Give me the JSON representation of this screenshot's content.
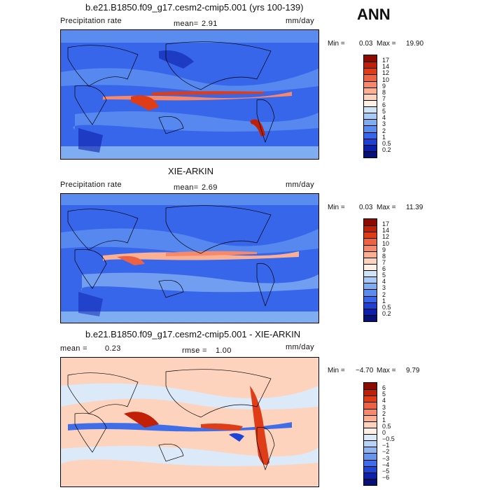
{
  "season": "ANN",
  "panels": [
    {
      "title": "b.e21.B1850.f09_g17.cesm2-cmip5.001 (yrs 100-139)",
      "left_label": "Precipitation rate",
      "mean_label": "mean=",
      "mean_value": "2.91",
      "units": "mm/day",
      "min_label": "Min =",
      "min_value": "0.03",
      "max_label": "Max =",
      "max_value": "19.90",
      "palette": "precip",
      "levels": [
        "17",
        "14",
        "12",
        "10",
        "9",
        "8",
        "7",
        "6",
        "5",
        "4",
        "3",
        "2",
        "1",
        "0.5",
        "0.2"
      ],
      "colors": [
        "#8c0a00",
        "#c21f07",
        "#de3d17",
        "#ec6242",
        "#f7886a",
        "#fbb093",
        "#fdd3bd",
        "#fff0e6",
        "#cfe3f6",
        "#a9cbf3",
        "#7fadf2",
        "#5a8cf0",
        "#3866ea",
        "#1f40d6",
        "#0c1fa8",
        "#05107a"
      ]
    },
    {
      "title": "XIE-ARKIN",
      "left_label": "Precipitation rate",
      "mean_label": "mean=",
      "mean_value": "2.69",
      "units": "mm/day",
      "min_label": "Min =",
      "min_value": "0.03",
      "max_label": "Max =",
      "max_value": "11.39",
      "palette": "precip",
      "levels": [
        "17",
        "14",
        "12",
        "10",
        "9",
        "8",
        "7",
        "6",
        "5",
        "4",
        "3",
        "2",
        "1",
        "0.5",
        "0.2"
      ],
      "colors": [
        "#8c0a00",
        "#c21f07",
        "#de3d17",
        "#ec6242",
        "#f7886a",
        "#fbb093",
        "#fdd3bd",
        "#fff0e6",
        "#cfe3f6",
        "#a9cbf3",
        "#7fadf2",
        "#5a8cf0",
        "#3866ea",
        "#1f40d6",
        "#0c1fa8",
        "#05107a"
      ]
    },
    {
      "title": "b.e21.B1850.f09_g17.cesm2-cmip5.001 - XIE-ARKIN",
      "left_label": "mean =",
      "mean_value": "0.23",
      "rmse_label": "rmse =",
      "rmse_value": "1.00",
      "units": "mm/day",
      "min_label": "Min =",
      "min_value": "−4.70",
      "max_label": "Max =",
      "max_value": "9.79",
      "palette": "diff",
      "levels": [
        "6",
        "5",
        "4",
        "3",
        "2",
        "1",
        "0.5",
        "0",
        "−0.5",
        "−1",
        "−2",
        "−3",
        "−4",
        "−5",
        "−6"
      ],
      "colors": [
        "#8c0a00",
        "#c21f07",
        "#de3d17",
        "#ec6242",
        "#f7886a",
        "#fbb093",
        "#fdd3bd",
        "#fff0e6",
        "#dce9f8",
        "#b9d3f5",
        "#8fb6f2",
        "#6694ef",
        "#3f6ee8",
        "#1f45d6",
        "#0c22a8",
        "#05107a"
      ]
    }
  ]
}
